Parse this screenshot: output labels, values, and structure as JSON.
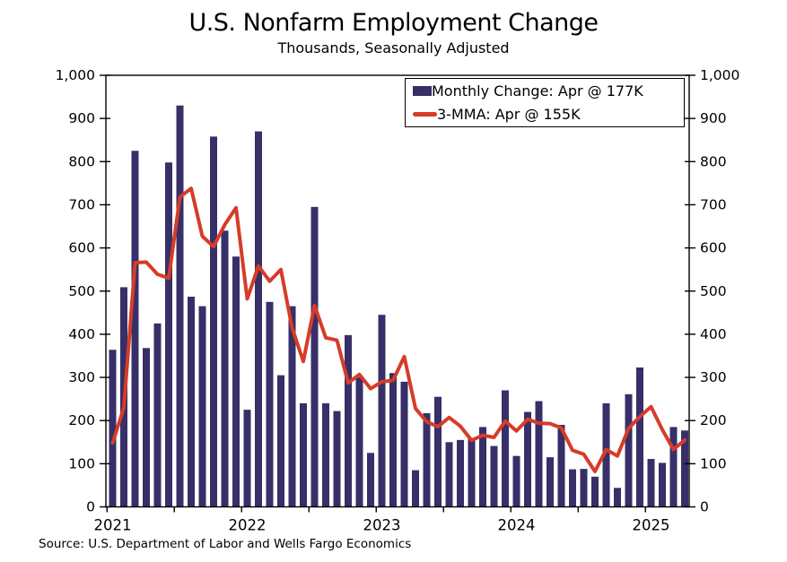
{
  "title": "U.S. Nonfarm Employment Change",
  "subtitle": "Thousands, Seasonally Adjusted",
  "source": "Source: U.S. Department of Labor and Wells Fargo Economics",
  "legend": {
    "bar_label": "Monthly Change: Apr @ 177K",
    "line_label": "3-MMA: Apr @ 155K"
  },
  "colors": {
    "bar": "#362F68",
    "line": "#D63C28",
    "axis": "#000000",
    "text": "#000000",
    "background": "#FFFFFF"
  },
  "chart_data": {
    "type": "bar",
    "x_unit": "month",
    "start_month": "2021-01",
    "end_month": "2025-04",
    "year_labels": [
      "2021",
      "2022",
      "2023",
      "2024",
      "2025"
    ],
    "y_axis": {
      "min": 0,
      "max": 1000,
      "step": 100,
      "tick_label_max": "1,000",
      "sides": "both",
      "grid": false
    },
    "x_tick_positions": "half-year boundaries",
    "legend_position": "top-right inside plot",
    "series": [
      {
        "name": "Monthly Change",
        "type": "bar",
        "unit": "thousands",
        "values": [
          364,
          509,
          825,
          368,
          425,
          798,
          930,
          487,
          465,
          858,
          640,
          580,
          225,
          870,
          475,
          305,
          465,
          240,
          695,
          240,
          222,
          398,
          300,
          125,
          445,
          310,
          290,
          85,
          217,
          255,
          150,
          155,
          158,
          185,
          141,
          270,
          118,
          220,
          245,
          115,
          190,
          87,
          88,
          70,
          240,
          44,
          261,
          323,
          111,
          102,
          185,
          177
        ]
      },
      {
        "name": "3-MMA",
        "type": "line",
        "unit": "thousands",
        "values": [
          148,
          230,
          566,
          567,
          539,
          530,
          718,
          738,
          627,
          603,
          654,
          693,
          482,
          558,
          523,
          550,
          415,
          337,
          467,
          392,
          386,
          287,
          307,
          274,
          290,
          293,
          348,
          228,
          197,
          186,
          207,
          187,
          154,
          166,
          161,
          199,
          176,
          203,
          194,
          193,
          183,
          131,
          122,
          82,
          133,
          118,
          182,
          209,
          232,
          179,
          133,
          155
        ]
      }
    ]
  }
}
